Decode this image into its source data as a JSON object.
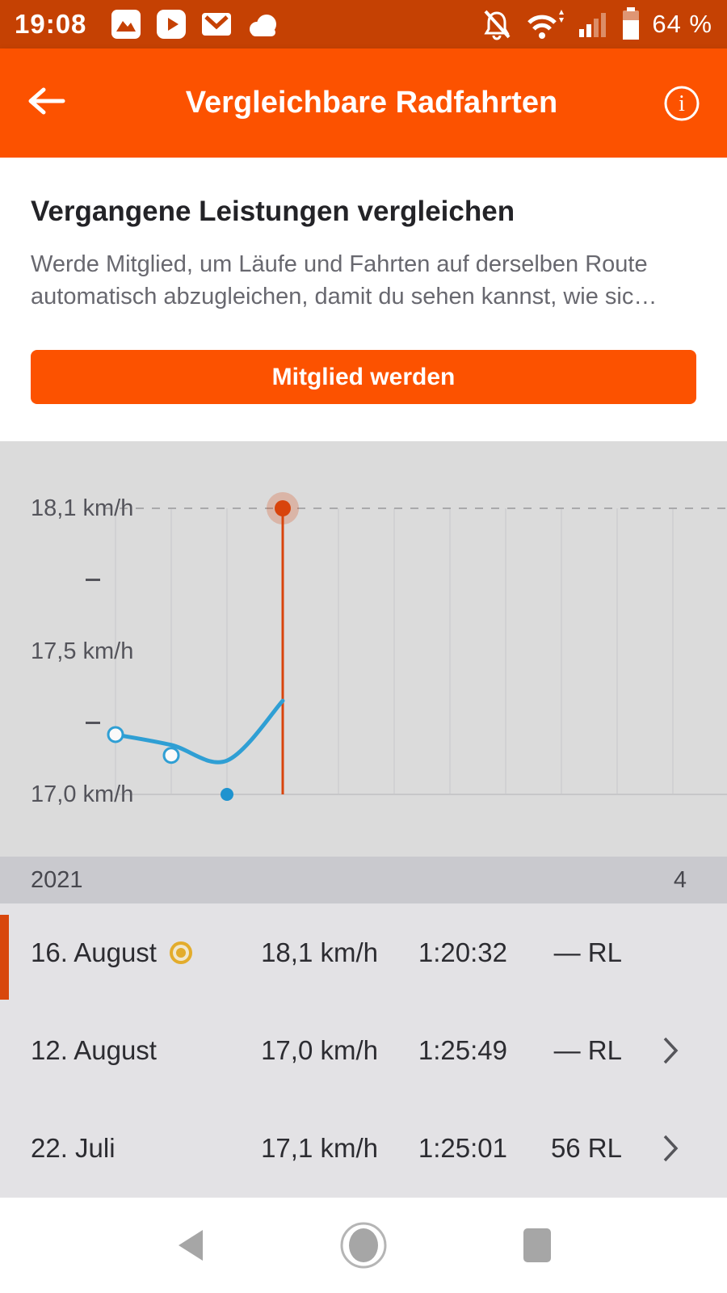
{
  "status_bar": {
    "time": "19:08",
    "battery_percent": "64 %",
    "left_icons": [
      "gallery-icon",
      "youtube-icon",
      "mail-icon",
      "cloud-icon"
    ],
    "right_icons": [
      "notifications-off-icon",
      "wifi-icon",
      "cell-signal-icon",
      "battery-icon"
    ],
    "bg_color": "#c54103"
  },
  "header": {
    "title": "Vergleichbare Radfahrten",
    "bg_color": "#fc5200"
  },
  "upsell": {
    "heading": "Vergangene Leistungen vergleichen",
    "body": "Werde Mitglied, um Läufe und Fahrten auf derselben Route automatisch abzugleichen, damit du sehen kannst, wie sic…",
    "button_label": "Mitglied werden"
  },
  "chart_data": {
    "type": "line",
    "title": "",
    "xlabel": "",
    "ylabel": "km/h",
    "ylim": [
      17.0,
      18.1
    ],
    "y_tick_labels": [
      "18,1 km/h",
      "17,5 km/h",
      "17,0 km/h"
    ],
    "grid": true,
    "legend": false,
    "series": [
      {
        "name": "Trend",
        "kind": "spline",
        "x": [
          0,
          1,
          2,
          3
        ],
        "values": [
          17.23,
          17.19,
          17.13,
          17.36
        ],
        "color": "#2f9fd4"
      },
      {
        "name": "Fahrten",
        "kind": "scatter",
        "points": [
          {
            "x": 0,
            "value": 17.23,
            "style": "open"
          },
          {
            "x": 1,
            "value": 17.15,
            "style": "open"
          },
          {
            "x": 2,
            "value": 17.0,
            "style": "filled"
          },
          {
            "x": 3,
            "value": 18.1,
            "style": "selected"
          }
        ]
      }
    ],
    "selected_point": {
      "x": 3,
      "value": 18.1,
      "label": "18,1 km/h",
      "date": "16. August"
    },
    "colors": {
      "line": "#2f9fd4",
      "point_filled": "#1f93cf",
      "selected": "#d8440c",
      "grid": "#d1d1d3",
      "dashed": "#a9a9ab",
      "axis": "#c7c7c9",
      "bg": "#dbdbdb"
    }
  },
  "list": {
    "year_header": {
      "year": "2021",
      "count": "4"
    },
    "rows": [
      {
        "date": "16. August",
        "medal": true,
        "speed": "18,1 km/h",
        "time": "1:20:32",
        "rl": "— RL",
        "selected": true,
        "chevron": false
      },
      {
        "date": "12. August",
        "medal": false,
        "speed": "17,0 km/h",
        "time": "1:25:49",
        "rl": "— RL",
        "selected": false,
        "chevron": true
      },
      {
        "date": "22. Juli",
        "medal": false,
        "speed": "17,1 km/h",
        "time": "1:25:01",
        "rl": "56 RL",
        "selected": false,
        "chevron": true
      }
    ]
  },
  "nav_bar": {
    "icons": [
      "back-triangle-icon",
      "home-circle-icon",
      "recents-square-icon"
    ]
  }
}
